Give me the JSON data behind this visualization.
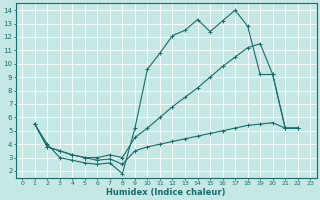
{
  "xlabel": "Humidex (Indice chaleur)",
  "bg_color": "#c5e8e5",
  "grid_color": "#b0d8d5",
  "line_color": "#1a6b6b",
  "xlim": [
    -0.5,
    23.5
  ],
  "ylim": [
    1.5,
    14.5
  ],
  "xticks": [
    0,
    1,
    2,
    3,
    4,
    5,
    6,
    7,
    8,
    9,
    10,
    11,
    12,
    13,
    14,
    15,
    16,
    17,
    18,
    19,
    20,
    21,
    22,
    23
  ],
  "yticks": [
    2,
    3,
    4,
    5,
    6,
    7,
    8,
    9,
    10,
    11,
    12,
    13,
    14
  ],
  "line1_x": [
    1,
    2,
    3,
    4,
    5,
    6,
    7,
    8,
    9,
    10,
    11,
    12,
    13,
    14,
    15,
    16,
    17,
    18,
    19,
    20,
    21,
    22
  ],
  "line1_y": [
    5.5,
    4.0,
    3.0,
    2.8,
    2.6,
    2.5,
    2.6,
    1.8,
    5.2,
    9.6,
    10.8,
    12.1,
    12.5,
    13.3,
    12.4,
    13.2,
    14.0,
    12.8,
    9.2,
    9.2,
    5.2,
    5.2
  ],
  "line2_x": [
    1,
    2,
    3,
    4,
    5,
    6,
    7,
    8,
    9,
    10,
    11,
    12,
    13,
    14,
    15,
    16,
    17,
    18,
    19,
    20,
    21,
    22
  ],
  "line2_y": [
    5.5,
    3.8,
    3.5,
    3.2,
    3.0,
    3.0,
    3.2,
    3.0,
    4.5,
    5.2,
    6.0,
    6.8,
    7.5,
    8.2,
    9.0,
    9.8,
    10.5,
    11.2,
    11.5,
    9.2,
    5.2,
    5.2
  ],
  "line3_x": [
    1,
    2,
    3,
    4,
    5,
    6,
    7,
    8,
    9,
    10,
    11,
    12,
    13,
    14,
    15,
    16,
    17,
    18,
    19,
    20,
    21,
    22
  ],
  "line3_y": [
    5.5,
    3.8,
    3.5,
    3.2,
    3.0,
    2.8,
    2.9,
    2.5,
    3.5,
    3.8,
    4.0,
    4.2,
    4.4,
    4.6,
    4.8,
    5.0,
    5.2,
    5.4,
    5.5,
    5.6,
    5.2,
    5.2
  ]
}
